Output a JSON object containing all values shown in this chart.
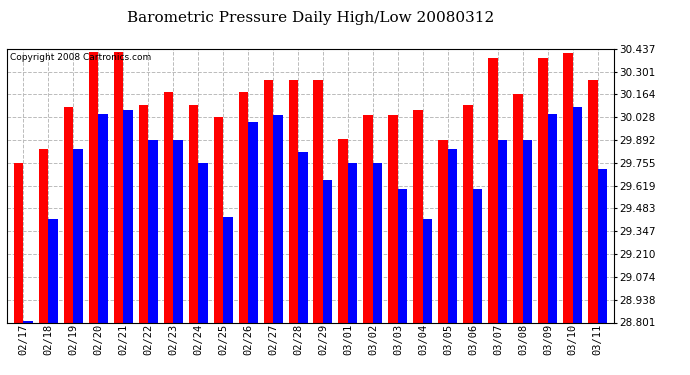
{
  "title": "Barometric Pressure Daily High/Low 20080312",
  "copyright": "Copyright 2008 Cartronics.com",
  "categories": [
    "02/17",
    "02/18",
    "02/19",
    "02/20",
    "02/21",
    "02/22",
    "02/23",
    "02/24",
    "02/25",
    "02/26",
    "02/27",
    "02/28",
    "02/29",
    "03/01",
    "03/02",
    "03/03",
    "03/04",
    "03/05",
    "03/06",
    "03/07",
    "03/08",
    "03/09",
    "03/10",
    "03/11"
  ],
  "highs": [
    29.755,
    29.84,
    30.09,
    30.42,
    30.42,
    30.1,
    30.18,
    30.1,
    30.028,
    30.18,
    30.25,
    30.25,
    30.25,
    29.9,
    30.04,
    30.04,
    30.07,
    29.892,
    30.1,
    30.38,
    30.164,
    30.38,
    30.41,
    30.25
  ],
  "lows": [
    28.81,
    29.42,
    29.84,
    30.05,
    30.07,
    29.892,
    29.892,
    29.755,
    29.43,
    30.0,
    30.04,
    29.82,
    29.65,
    29.755,
    29.755,
    29.6,
    29.42,
    29.84,
    29.6,
    29.892,
    29.892,
    30.05,
    30.09,
    29.72
  ],
  "high_color": "#ff0000",
  "low_color": "#0000ff",
  "bg_color": "#ffffff",
  "plot_bg_color": "#ffffff",
  "grid_color": "#bbbbbb",
  "ymin": 28.801,
  "ymax": 30.437,
  "yticks": [
    28.801,
    28.938,
    29.074,
    29.21,
    29.347,
    29.483,
    29.619,
    29.755,
    29.892,
    30.028,
    30.164,
    30.301,
    30.437
  ],
  "title_fontsize": 11,
  "copyright_fontsize": 6.5,
  "tick_fontsize": 7.5
}
